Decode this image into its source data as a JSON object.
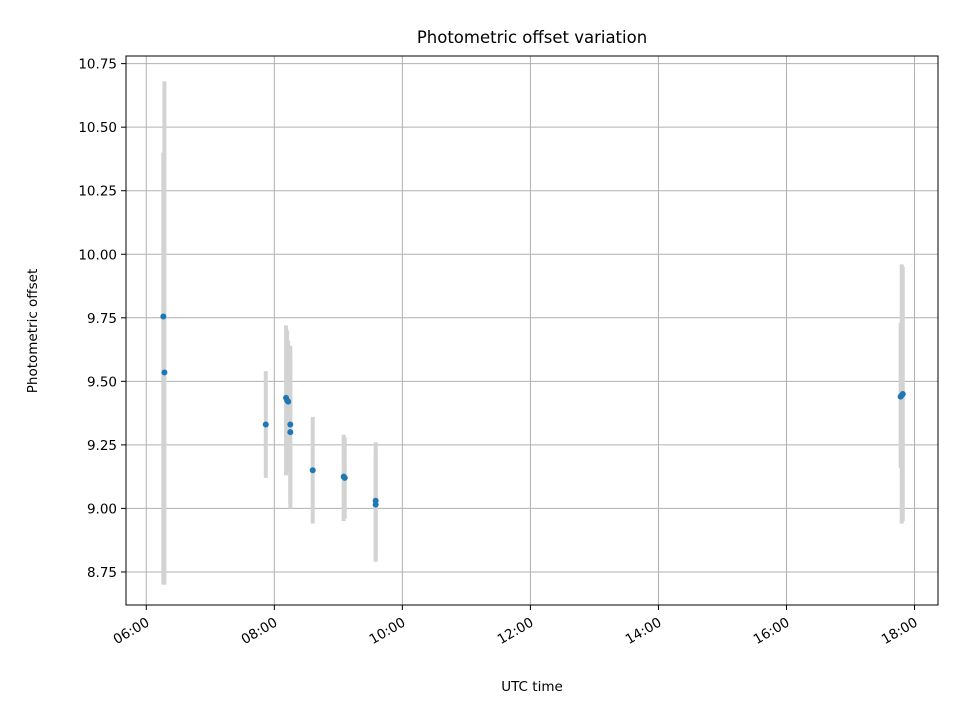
{
  "chart_data": {
    "type": "scatter",
    "title": "Photometric offset variation",
    "xlabel": "UTC time",
    "ylabel": "Photometric offset",
    "xlim": [
      "05:41",
      "18:22"
    ],
    "ylim": [
      8.62,
      10.78
    ],
    "x_ticks": [
      "06:00",
      "08:00",
      "10:00",
      "12:00",
      "14:00",
      "16:00",
      "18:00"
    ],
    "y_ticks": [
      "8.75",
      "9.00",
      "9.25",
      "9.50",
      "9.75",
      "10.00",
      "10.25",
      "10.50",
      "10.75"
    ],
    "grid": true,
    "marker_color": "#1f77b4",
    "errorbar_color": "#d3d3d3",
    "points": [
      {
        "x": "06:16",
        "y": 9.755,
        "err_low": 8.7,
        "err_high": 10.4
      },
      {
        "x": "06:17",
        "y": 9.535,
        "err_low": 8.7,
        "err_high": 10.68
      },
      {
        "x": "07:52",
        "y": 9.33,
        "err_low": 9.12,
        "err_high": 9.54
      },
      {
        "x": "08:11",
        "y": 9.435,
        "err_low": 9.13,
        "err_high": 9.72
      },
      {
        "x": "08:12",
        "y": 9.425,
        "err_low": 9.14,
        "err_high": 9.7
      },
      {
        "x": "08:13",
        "y": 9.42,
        "err_low": 9.15,
        "err_high": 9.66
      },
      {
        "x": "08:15",
        "y": 9.33,
        "err_low": 9.0,
        "err_high": 9.64
      },
      {
        "x": "08:15",
        "y": 9.3,
        "err_low": 9.02,
        "err_high": 9.6
      },
      {
        "x": "08:36",
        "y": 9.15,
        "err_low": 8.94,
        "err_high": 9.36
      },
      {
        "x": "09:05",
        "y": 9.125,
        "err_low": 8.95,
        "err_high": 9.29
      },
      {
        "x": "09:06",
        "y": 9.12,
        "err_low": 8.96,
        "err_high": 9.28
      },
      {
        "x": "09:35",
        "y": 9.03,
        "err_low": 8.79,
        "err_high": 9.26
      },
      {
        "x": "09:35",
        "y": 9.015,
        "err_low": 8.8,
        "err_high": 9.23
      },
      {
        "x": "17:47",
        "y": 9.44,
        "err_low": 9.16,
        "err_high": 9.73
      },
      {
        "x": "17:48",
        "y": 9.445,
        "err_low": 8.94,
        "err_high": 9.96
      },
      {
        "x": "17:49",
        "y": 9.45,
        "err_low": 8.95,
        "err_high": 9.95
      }
    ]
  }
}
